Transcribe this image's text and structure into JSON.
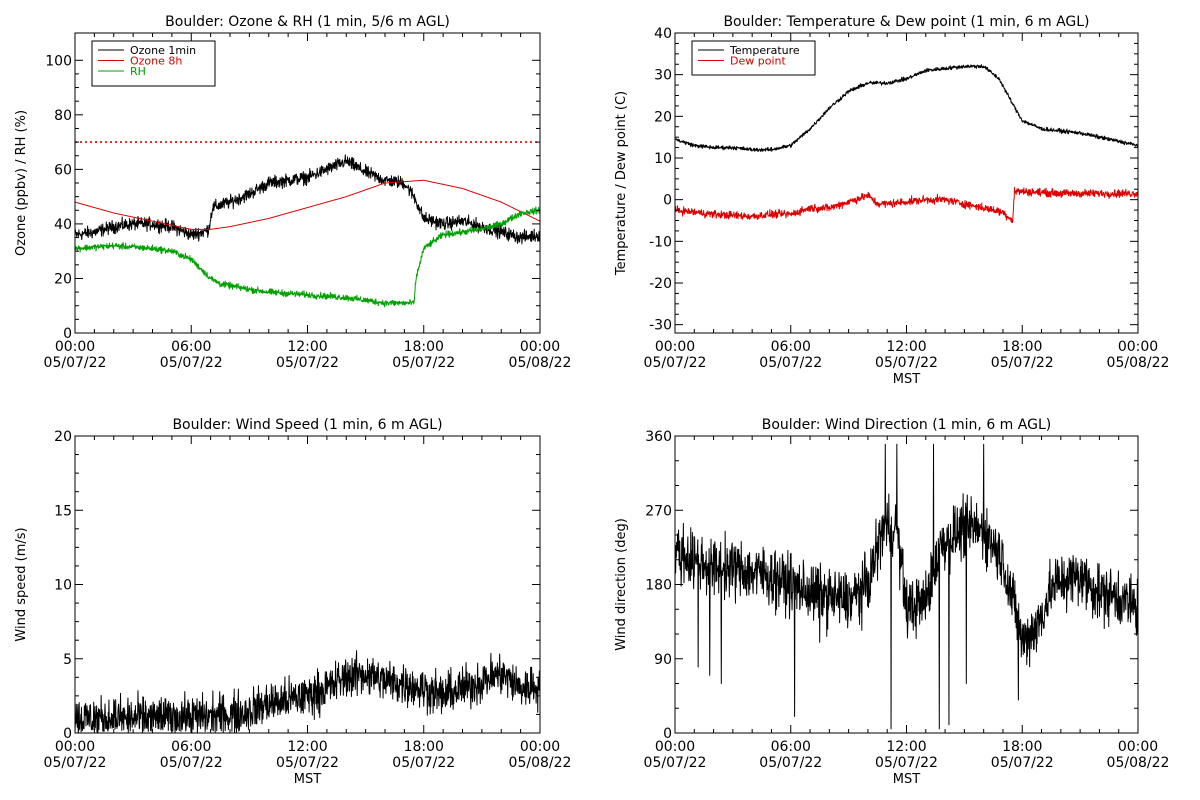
{
  "chart_data": [
    {
      "type": "line",
      "title": "Boulder: Ozone & RH (1 min, 5/6 m AGL)",
      "xlabel": "",
      "ylabel": "Ozone (ppbv) / RH (%)",
      "xlim": [
        0,
        24
      ],
      "ylim": [
        0,
        110
      ],
      "yticks": [
        0,
        20,
        40,
        60,
        80,
        100
      ],
      "xticks": [
        {
          "x": 0,
          "time": "00:00",
          "date": "05/07/22"
        },
        {
          "x": 6,
          "time": "06:00",
          "date": "05/07/22"
        },
        {
          "x": 12,
          "time": "12:00",
          "date": "05/07/22"
        },
        {
          "x": 18,
          "time": "18:00",
          "date": "05/07/22"
        },
        {
          "x": 24,
          "time": "00:00",
          "date": "05/08/22"
        }
      ],
      "legend_position": "top-left",
      "reference_line": {
        "y": 70,
        "color": "#dd0000",
        "style": "dotted"
      },
      "series": [
        {
          "name": "Ozone 1min",
          "color": "#000000",
          "noise": 2.0,
          "points": [
            [
              0,
              36
            ],
            [
              1,
              37
            ],
            [
              2,
              39
            ],
            [
              3,
              40
            ],
            [
              4,
              40
            ],
            [
              5,
              39
            ],
            [
              6,
              36
            ],
            [
              6.6,
              37
            ],
            [
              6.9,
              38
            ],
            [
              7.1,
              46
            ],
            [
              8,
              48
            ],
            [
              9,
              51
            ],
            [
              10,
              55
            ],
            [
              11,
              56
            ],
            [
              12,
              57
            ],
            [
              13,
              60
            ],
            [
              14,
              63
            ],
            [
              15,
              59
            ],
            [
              16,
              56
            ],
            [
              17,
              55
            ],
            [
              17.5,
              50
            ],
            [
              18,
              42
            ],
            [
              19,
              40
            ],
            [
              20,
              41
            ],
            [
              21,
              39
            ],
            [
              22,
              37
            ],
            [
              23,
              35
            ],
            [
              24,
              36
            ]
          ]
        },
        {
          "name": "Ozone 8h",
          "color": "#dd0000",
          "noise": 0,
          "points": [
            [
              0,
              48
            ],
            [
              2,
              44
            ],
            [
              4,
              41
            ],
            [
              6,
              38
            ],
            [
              7,
              38
            ],
            [
              8,
              39
            ],
            [
              10,
              42
            ],
            [
              12,
              46
            ],
            [
              14,
              50
            ],
            [
              16,
              55
            ],
            [
              18,
              56
            ],
            [
              20,
              53
            ],
            [
              22,
              48
            ],
            [
              24,
              41
            ]
          ]
        },
        {
          "name": "RH",
          "color": "#00a000",
          "noise": 1.0,
          "points": [
            [
              0,
              31
            ],
            [
              2,
              32
            ],
            [
              4,
              31
            ],
            [
              5,
              30
            ],
            [
              6,
              27
            ],
            [
              7,
              20
            ],
            [
              7.5,
              18
            ],
            [
              9,
              16
            ],
            [
              10,
              15
            ],
            [
              12,
              14
            ],
            [
              14,
              13
            ],
            [
              16,
              11
            ],
            [
              17.5,
              11
            ],
            [
              17.6,
              20
            ],
            [
              18,
              31
            ],
            [
              19,
              36
            ],
            [
              20,
              37
            ],
            [
              21,
              38
            ],
            [
              22,
              40
            ],
            [
              23,
              44
            ],
            [
              24,
              45
            ]
          ]
        }
      ]
    },
    {
      "type": "line",
      "title": "Boulder: Temperature & Dew point (1 min, 6 m AGL)",
      "xlabel": "MST",
      "ylabel": "Temperature / Dew point (C)",
      "xlim": [
        0,
        24
      ],
      "ylim": [
        -32,
        40
      ],
      "yticks": [
        -30,
        -20,
        -10,
        0,
        10,
        20,
        30,
        40
      ],
      "xticks": [
        {
          "x": 0,
          "time": "00:00",
          "date": "05/07/22"
        },
        {
          "x": 6,
          "time": "06:00",
          "date": "05/07/22"
        },
        {
          "x": 12,
          "time": "12:00",
          "date": "05/07/22"
        },
        {
          "x": 18,
          "time": "18:00",
          "date": "05/07/22"
        },
        {
          "x": 24,
          "time": "00:00",
          "date": "05/08/22"
        }
      ],
      "legend_position": "top-left",
      "series": [
        {
          "name": "Temperature",
          "color": "#000000",
          "noise": 0.4,
          "points": [
            [
              0,
              14.5
            ],
            [
              1,
              13
            ],
            [
              2,
              12.5
            ],
            [
              3,
              12.5
            ],
            [
              4,
              12
            ],
            [
              5,
              12
            ],
            [
              6,
              13
            ],
            [
              7,
              17
            ],
            [
              8,
              22
            ],
            [
              9,
              26
            ],
            [
              10,
              28
            ],
            [
              11,
              28
            ],
            [
              12,
              29
            ],
            [
              13,
              31
            ],
            [
              14,
              31.5
            ],
            [
              15,
              32
            ],
            [
              16,
              32
            ],
            [
              16.8,
              29
            ],
            [
              17.5,
              23
            ],
            [
              18,
              19
            ],
            [
              19,
              17
            ],
            [
              20,
              16.5
            ],
            [
              21,
              16
            ],
            [
              22,
              15
            ],
            [
              23,
              14
            ],
            [
              24,
              13
            ]
          ]
        },
        {
          "name": "Dew point",
          "color": "#dd0000",
          "noise": 0.8,
          "points": [
            [
              0,
              -2.5
            ],
            [
              2,
              -3.5
            ],
            [
              4,
              -4
            ],
            [
              5,
              -3.5
            ],
            [
              6,
              -3.5
            ],
            [
              7,
              -2
            ],
            [
              8,
              -2
            ],
            [
              9,
              -0.5
            ],
            [
              10,
              1
            ],
            [
              10.5,
              -1
            ],
            [
              11,
              -1
            ],
            [
              12,
              -0.5
            ],
            [
              13,
              0
            ],
            [
              14,
              0
            ],
            [
              15,
              -1
            ],
            [
              16,
              -2
            ],
            [
              17,
              -3
            ],
            [
              17.5,
              -5
            ],
            [
              17.6,
              2
            ],
            [
              18,
              2
            ],
            [
              20,
              1.5
            ],
            [
              22,
              1.5
            ],
            [
              24,
              1.5
            ]
          ]
        }
      ]
    },
    {
      "type": "line",
      "title": "Boulder: Wind Speed (1 min, 6 m AGL)",
      "xlabel": "MST",
      "ylabel": "Wind speed (m/s)",
      "xlim": [
        0,
        24
      ],
      "ylim": [
        0,
        20
      ],
      "yticks": [
        0,
        5,
        10,
        15,
        20
      ],
      "xticks": [
        {
          "x": 0,
          "time": "00:00",
          "date": "05/07/22"
        },
        {
          "x": 6,
          "time": "06:00",
          "date": "05/07/22"
        },
        {
          "x": 12,
          "time": "12:00",
          "date": "05/07/22"
        },
        {
          "x": 18,
          "time": "18:00",
          "date": "05/07/22"
        },
        {
          "x": 24,
          "time": "00:00",
          "date": "05/08/22"
        }
      ],
      "series": [
        {
          "name": "",
          "color": "#000000",
          "noise": 1.2,
          "clip_min": 0,
          "points": [
            [
              0,
              1
            ],
            [
              2,
              1
            ],
            [
              4,
              1
            ],
            [
              6,
              1.1
            ],
            [
              8,
              1.2
            ],
            [
              9,
              1.5
            ],
            [
              10,
              2
            ],
            [
              11,
              2.2
            ],
            [
              12,
              2.5
            ],
            [
              13,
              3
            ],
            [
              14,
              3.8
            ],
            [
              15,
              4
            ],
            [
              16,
              3.5
            ],
            [
              17,
              3.3
            ],
            [
              18,
              3
            ],
            [
              19,
              2.5
            ],
            [
              20,
              3
            ],
            [
              21,
              3.5
            ],
            [
              22,
              4
            ],
            [
              23,
              3
            ],
            [
              24,
              3.2
            ]
          ]
        }
      ]
    },
    {
      "type": "line",
      "title": "Boulder: Wind Direction (1 min, 6 m AGL)",
      "xlabel": "MST",
      "ylabel": "Wind direction (deg)",
      "xlim": [
        0,
        24
      ],
      "ylim": [
        0,
        360
      ],
      "yticks": [
        0,
        90,
        180,
        270,
        360
      ],
      "xticks": [
        {
          "x": 0,
          "time": "00:00",
          "date": "05/07/22"
        },
        {
          "x": 6,
          "time": "06:00",
          "date": "05/07/22"
        },
        {
          "x": 12,
          "time": "12:00",
          "date": "05/07/22"
        },
        {
          "x": 18,
          "time": "18:00",
          "date": "05/07/22"
        },
        {
          "x": 24,
          "time": "00:00",
          "date": "05/08/22"
        }
      ],
      "series": [
        {
          "name": "",
          "color": "#000000",
          "noise": 30,
          "clip_min": 0,
          "clip_max": 360,
          "spikes": [
            [
              1.2,
              80
            ],
            [
              1.8,
              70
            ],
            [
              2.4,
              60
            ],
            [
              6.2,
              20
            ],
            [
              7.5,
              110
            ],
            [
              10.9,
              350
            ],
            [
              11.2,
              5
            ],
            [
              11.5,
              350
            ],
            [
              12.2,
              140
            ],
            [
              13.4,
              350
            ],
            [
              13.7,
              5
            ],
            [
              14.2,
              10
            ],
            [
              15.1,
              60
            ],
            [
              16.0,
              350
            ],
            [
              17.8,
              40
            ]
          ],
          "points": [
            [
              0,
              220
            ],
            [
              1,
              210
            ],
            [
              2,
              200
            ],
            [
              3,
              200
            ],
            [
              4,
              195
            ],
            [
              5,
              190
            ],
            [
              6,
              180
            ],
            [
              7,
              170
            ],
            [
              8,
              165
            ],
            [
              9,
              160
            ],
            [
              10,
              180
            ],
            [
              10.8,
              250
            ],
            [
              11.5,
              250
            ],
            [
              12,
              150
            ],
            [
              13,
              160
            ],
            [
              13.8,
              230
            ],
            [
              14.5,
              240
            ],
            [
              15,
              250
            ],
            [
              16,
              245
            ],
            [
              17,
              210
            ],
            [
              17.5,
              160
            ],
            [
              18,
              110
            ],
            [
              18.8,
              130
            ],
            [
              19.5,
              175
            ],
            [
              20,
              185
            ],
            [
              21,
              190
            ],
            [
              22,
              170
            ],
            [
              23,
              165
            ],
            [
              24,
              150
            ]
          ]
        }
      ]
    }
  ]
}
